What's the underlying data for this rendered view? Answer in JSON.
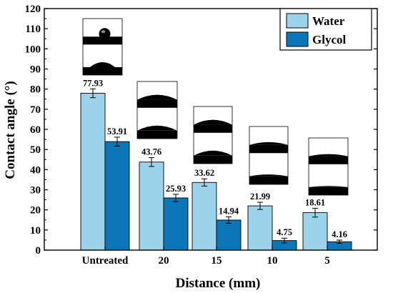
{
  "chart_data": {
    "type": "bar",
    "xlabel": "Distance (mm)",
    "ylabel": "Contact angle (°)",
    "categories": [
      "Untreated",
      "20",
      "15",
      "10",
      "5"
    ],
    "ylim": [
      0,
      120
    ],
    "yticks": [
      0,
      10,
      20,
      30,
      40,
      50,
      60,
      70,
      80,
      90,
      100,
      110,
      120
    ],
    "grid": false,
    "legend_position": "top-right",
    "series": [
      {
        "name": "Water",
        "color": "#9dd3ea",
        "values": [
          77.93,
          43.76,
          33.62,
          21.99,
          18.61
        ],
        "errors": [
          2.2,
          2.2,
          1.8,
          1.8,
          2.2
        ]
      },
      {
        "name": "Glycol",
        "color": "#0b77b8",
        "values": [
          53.91,
          25.93,
          14.94,
          4.75,
          4.16
        ],
        "errors": [
          2.2,
          1.8,
          1.6,
          1.2,
          0.8
        ]
      }
    ],
    "data_labels": {
      "Water": [
        "77.93",
        "43.76",
        "33.62",
        "21.99",
        "18.61"
      ],
      "Glycol": [
        "53.91",
        "25.93",
        "14.94",
        "4.75",
        "4.16"
      ]
    },
    "annotations": "droplet photographs above each Water bar"
  }
}
